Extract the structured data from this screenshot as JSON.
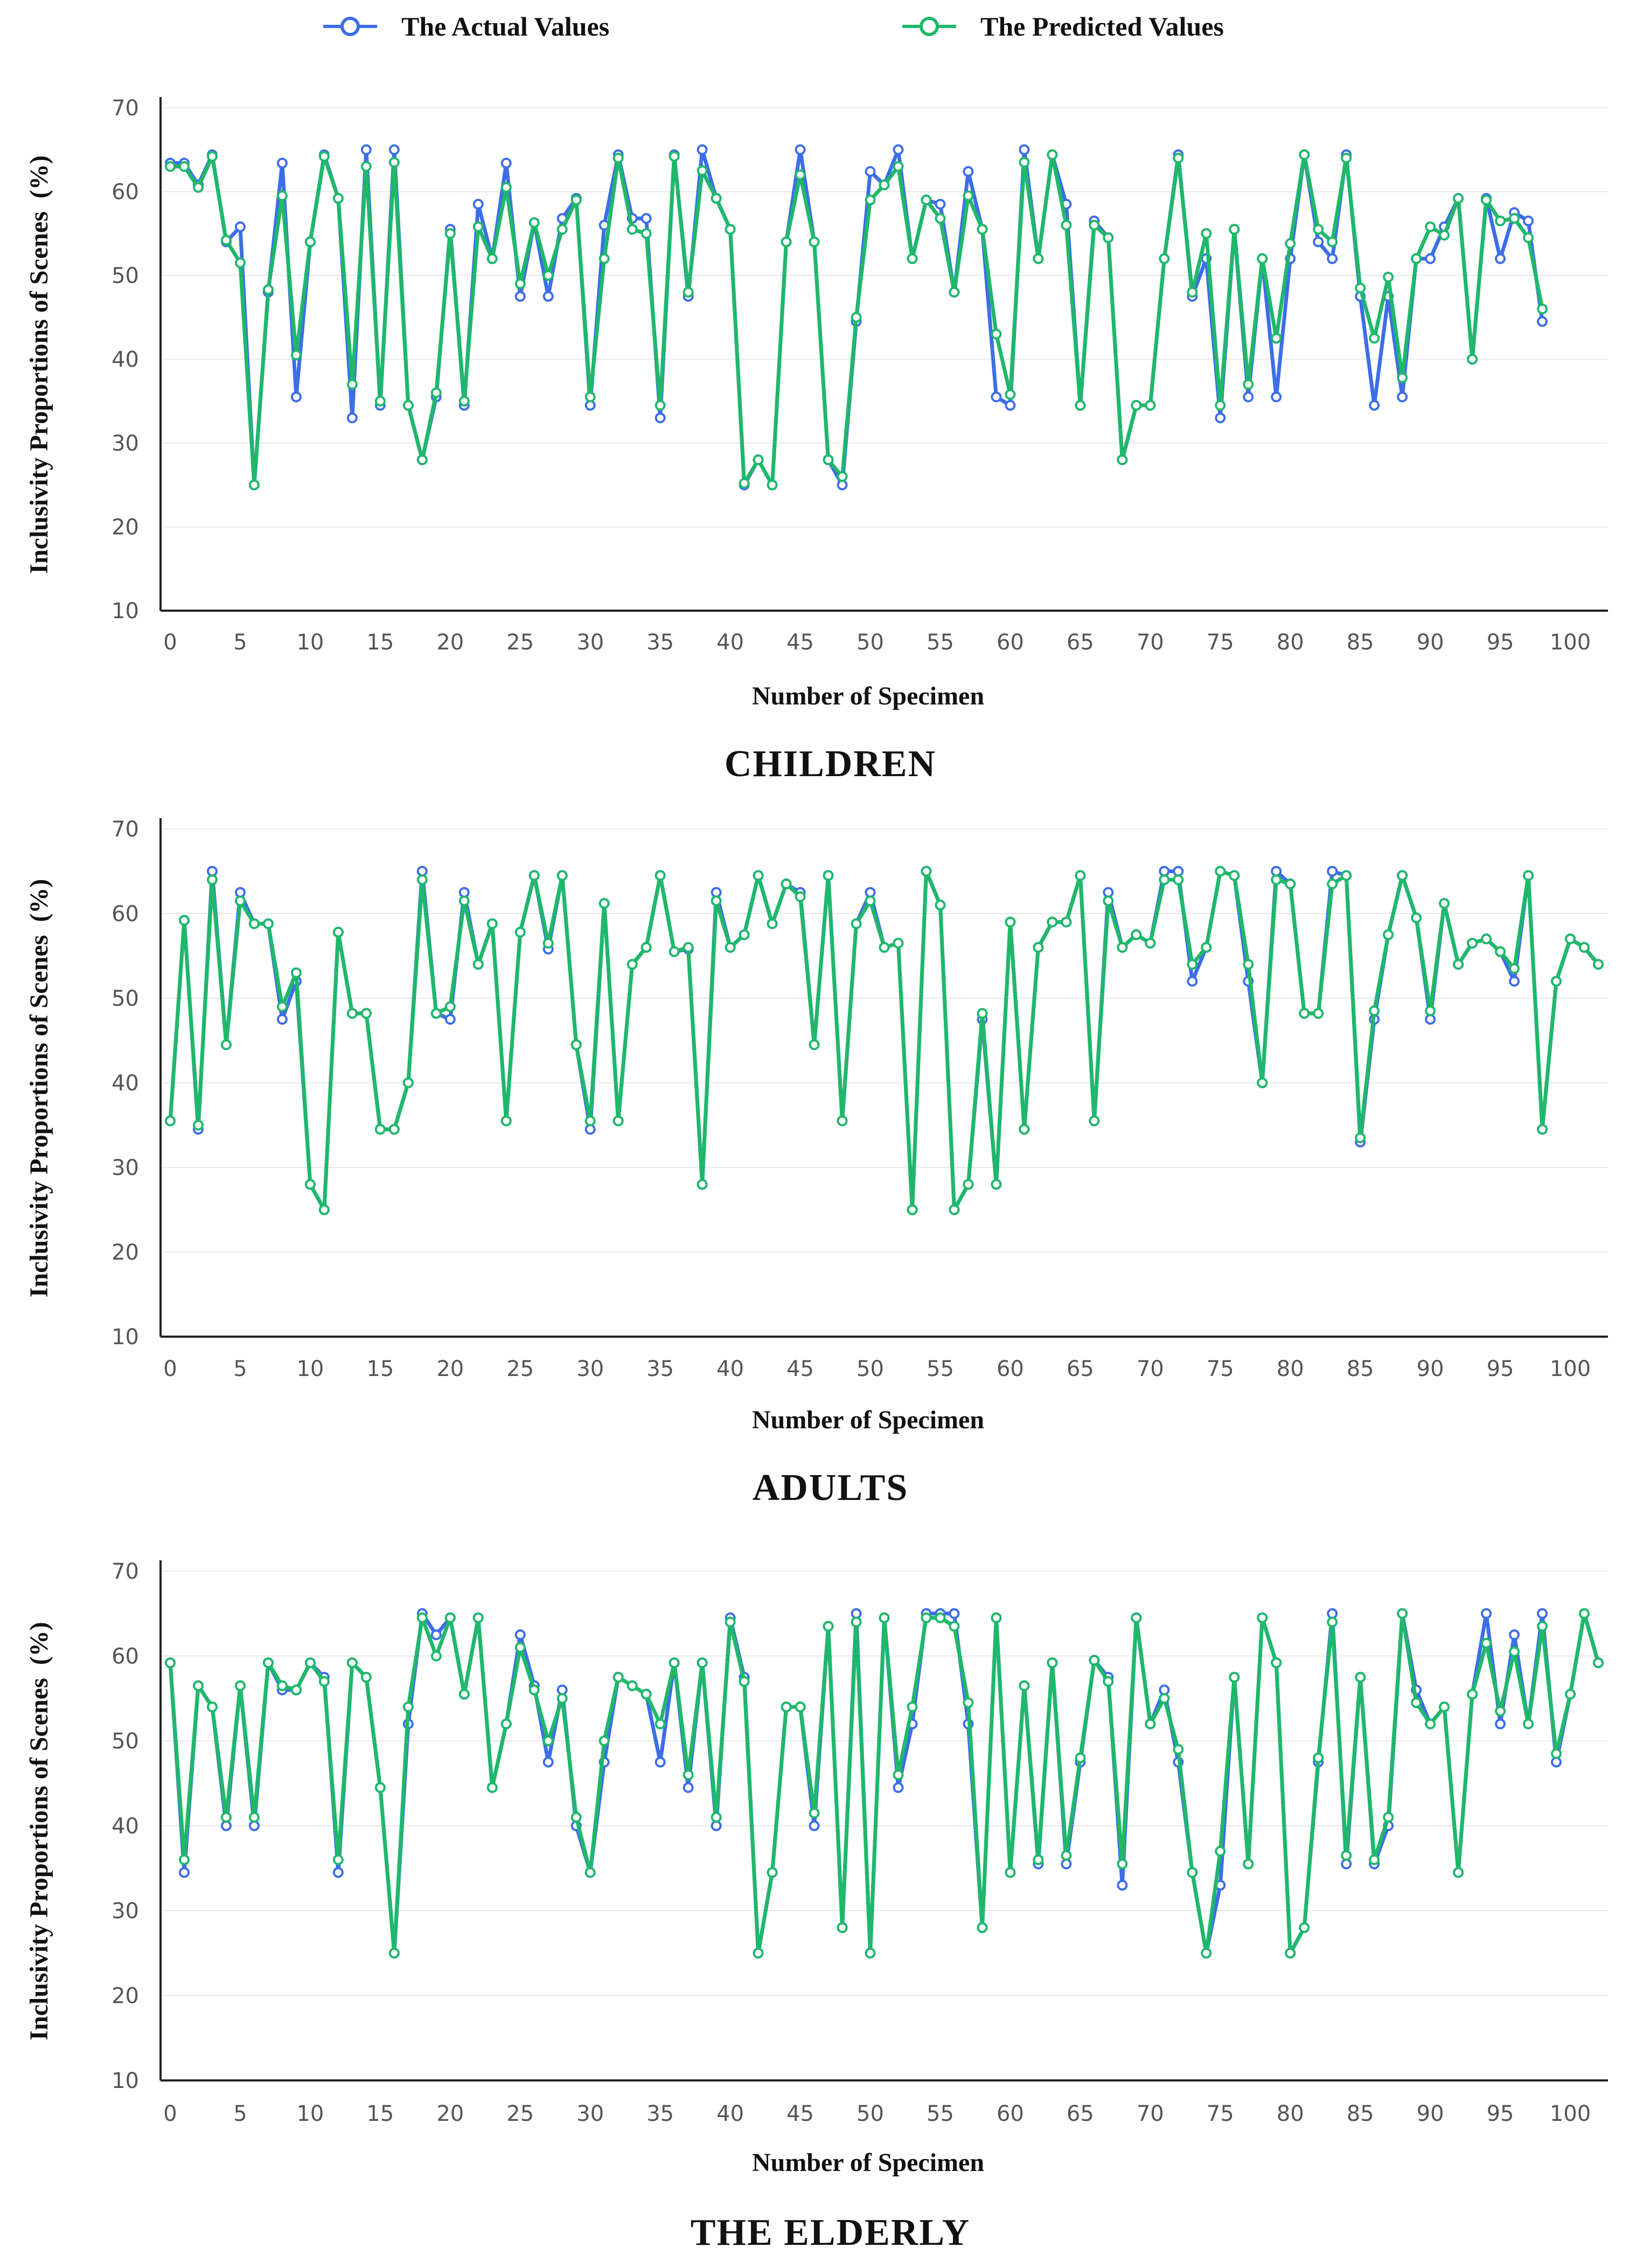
{
  "legend": {
    "actual": {
      "label": "The Actual Values",
      "color": "#3d6ee8"
    },
    "predicted": {
      "label": "The Predicted Values",
      "color": "#1fb86b"
    }
  },
  "chart_data": [
    {
      "type": "line",
      "title": "CHILDREN",
      "xlabel": "Number of Specimen",
      "ylabel": "Inclusivity Proportions of Scenes  (%)",
      "ylim": [
        10,
        70
      ],
      "xlim": [
        0,
        102
      ],
      "yticks": [
        "10",
        "20",
        "30",
        "40",
        "50",
        "60",
        "70"
      ],
      "xticks": [
        "0",
        "5",
        "10",
        "15",
        "20",
        "25",
        "30",
        "35",
        "40",
        "45",
        "50",
        "55",
        "60",
        "65",
        "70",
        "75",
        "80",
        "85",
        "90",
        "95",
        "100"
      ],
      "series": [
        {
          "name": "The Actual Values",
          "values": [
            63.4,
            63.4,
            60.8,
            64.4,
            54.0,
            55.8,
            25.0,
            48.0,
            63.4,
            35.5,
            54.0,
            64.4,
            59.2,
            33.0,
            65.0,
            34.5,
            65.0,
            34.5,
            28.0,
            35.5,
            55.5,
            34.5,
            58.5,
            52.0,
            63.4,
            47.5,
            56.3,
            47.5,
            56.8,
            59.2,
            34.5,
            56.0,
            64.4,
            56.8,
            56.8,
            33.0,
            64.4,
            47.5,
            65.0,
            59.2,
            55.5,
            25.0,
            28.0,
            25.0,
            54.0,
            65.0,
            54.0,
            28.0,
            25.0,
            44.5,
            62.4,
            60.8,
            65.0,
            52.0,
            59.0,
            58.5,
            48.0,
            62.4,
            55.5,
            35.5,
            34.5,
            65.0,
            52.0,
            64.4,
            58.5,
            34.5,
            56.5,
            54.5,
            28.0,
            34.5,
            34.5,
            52.0,
            64.4,
            47.5,
            52.0,
            33.0,
            55.5,
            35.5,
            52.0,
            35.5,
            52.0,
            64.4,
            54.0,
            52.0,
            64.4,
            47.5,
            34.5,
            47.5,
            35.5,
            52.0,
            52.0,
            55.8,
            59.2,
            40.0,
            59.2,
            52.0,
            57.5,
            56.5,
            44.5
          ]
        },
        {
          "name": "The Predicted Values",
          "values": [
            63.0,
            63.0,
            60.5,
            64.2,
            54.2,
            51.5,
            25.0,
            48.3,
            59.5,
            40.5,
            54.0,
            64.2,
            59.2,
            37.0,
            63.0,
            35.0,
            63.5,
            34.5,
            28.0,
            36.0,
            55.0,
            35.0,
            55.8,
            52.0,
            60.5,
            49.0,
            56.3,
            50.0,
            55.5,
            59.0,
            35.5,
            52.0,
            64.0,
            55.5,
            55.0,
            34.5,
            64.2,
            48.0,
            62.5,
            59.2,
            55.5,
            25.2,
            28.0,
            25.0,
            54.0,
            62.0,
            54.0,
            28.0,
            26.0,
            45.0,
            59.0,
            60.8,
            63.0,
            52.0,
            59.0,
            56.8,
            48.0,
            59.5,
            55.5,
            43.0,
            35.8,
            63.5,
            52.0,
            64.4,
            56.0,
            34.5,
            56.0,
            54.5,
            28.0,
            34.5,
            34.5,
            52.0,
            64.0,
            48.0,
            55.0,
            34.5,
            55.5,
            37.0,
            52.0,
            42.5,
            53.8,
            64.4,
            55.5,
            54.0,
            64.0,
            48.5,
            42.5,
            49.8,
            37.8,
            52.0,
            55.8,
            54.8,
            59.2,
            40.0,
            59.0,
            56.5,
            56.8,
            54.5,
            46.0
          ]
        }
      ]
    },
    {
      "type": "line",
      "title": "ADULTS",
      "xlabel": "Number of Specimen",
      "ylabel": "Inclusivity Proportions of Scenes  (%)",
      "ylim": [
        10,
        70
      ],
      "xlim": [
        0,
        102
      ],
      "yticks": [
        "10",
        "20",
        "30",
        "40",
        "50",
        "60",
        "70"
      ],
      "xticks": [
        "0",
        "5",
        "10",
        "15",
        "20",
        "25",
        "30",
        "35",
        "40",
        "45",
        "50",
        "55",
        "60",
        "65",
        "70",
        "75",
        "80",
        "85",
        "90",
        "95",
        "100"
      ],
      "series": [
        {
          "name": "The Actual Values",
          "values": [
            35.5,
            59.2,
            34.5,
            65.0,
            44.5,
            62.5,
            58.8,
            58.8,
            47.5,
            52.0,
            28.0,
            25.0,
            57.8,
            48.2,
            48.2,
            34.5,
            34.5,
            40.0,
            65.0,
            48.2,
            47.5,
            62.5,
            54.0,
            58.8,
            35.5,
            57.8,
            64.5,
            55.8,
            64.5,
            44.5,
            34.5,
            61.2,
            35.5,
            54.0,
            56.0,
            64.5,
            55.5,
            55.8,
            28.0,
            62.5,
            56.0,
            57.5,
            64.5,
            58.8,
            63.5,
            62.5,
            44.5,
            64.5,
            35.5,
            58.8,
            62.5,
            56.0,
            56.5,
            25.0,
            65.0,
            61.0,
            25.0,
            28.0,
            47.5,
            28.0,
            59.0,
            34.5,
            56.0,
            59.0,
            59.0,
            64.5,
            35.5,
            62.5,
            56.0,
            57.5,
            56.5,
            65.0,
            65.0,
            52.0,
            56.0,
            65.0,
            64.5,
            52.0,
            40.0,
            65.0,
            63.5,
            48.2,
            48.2,
            65.0,
            64.5,
            33.0,
            47.5,
            57.5,
            64.5,
            59.5,
            47.5,
            61.2,
            54.0,
            56.5,
            57.0,
            55.5,
            52.0,
            64.5,
            34.5,
            52.0,
            57.0,
            56.0,
            54.0
          ]
        },
        {
          "name": "The Predicted Values",
          "values": [
            35.5,
            59.2,
            35.0,
            64.0,
            44.5,
            61.5,
            58.8,
            58.8,
            49.0,
            53.0,
            28.0,
            25.0,
            57.8,
            48.2,
            48.2,
            34.5,
            34.5,
            40.0,
            64.0,
            48.2,
            49.0,
            61.5,
            54.0,
            58.8,
            35.5,
            57.8,
            64.5,
            56.5,
            64.5,
            44.5,
            35.5,
            61.2,
            35.5,
            54.0,
            56.0,
            64.5,
            55.5,
            56.0,
            28.0,
            61.5,
            56.0,
            57.5,
            64.5,
            58.8,
            63.5,
            62.0,
            44.5,
            64.5,
            35.5,
            58.8,
            61.5,
            56.0,
            56.5,
            25.0,
            65.0,
            61.0,
            25.0,
            28.0,
            48.2,
            28.0,
            59.0,
            34.5,
            56.0,
            59.0,
            59.0,
            64.5,
            35.5,
            61.5,
            56.0,
            57.5,
            56.5,
            64.0,
            64.0,
            54.0,
            56.0,
            65.0,
            64.5,
            54.0,
            40.0,
            64.0,
            63.5,
            48.2,
            48.2,
            63.5,
            64.5,
            33.5,
            48.5,
            57.5,
            64.5,
            59.5,
            48.5,
            61.2,
            54.0,
            56.5,
            57.0,
            55.5,
            53.5,
            64.5,
            34.5,
            52.0,
            57.0,
            56.0,
            54.0
          ]
        }
      ]
    },
    {
      "type": "line",
      "title": "THE ELDERLY",
      "xlabel": "Number of Specimen",
      "ylabel": "Inclusivity Proportions of Scenes  (%)",
      "ylim": [
        10,
        70
      ],
      "xlim": [
        0,
        102
      ],
      "yticks": [
        "10",
        "20",
        "30",
        "40",
        "50",
        "60",
        "70"
      ],
      "xticks": [
        "0",
        "5",
        "10",
        "15",
        "20",
        "25",
        "30",
        "35",
        "40",
        "45",
        "50",
        "55",
        "60",
        "65",
        "70",
        "75",
        "80",
        "85",
        "90",
        "95",
        "100"
      ],
      "series": [
        {
          "name": "The Actual Values",
          "values": [
            59.2,
            34.5,
            56.5,
            54.0,
            40.0,
            56.5,
            40.0,
            59.2,
            56.0,
            56.0,
            59.2,
            57.5,
            34.5,
            59.2,
            57.5,
            44.5,
            25.0,
            52.0,
            65.0,
            62.5,
            64.5,
            55.5,
            64.5,
            44.5,
            52.0,
            62.5,
            56.5,
            47.5,
            56.0,
            40.0,
            34.5,
            47.5,
            57.5,
            56.5,
            55.5,
            47.5,
            59.2,
            44.5,
            59.2,
            40.0,
            64.5,
            57.5,
            25.0,
            34.5,
            54.0,
            54.0,
            40.0,
            63.5,
            28.0,
            65.0,
            25.0,
            64.5,
            44.5,
            52.0,
            65.0,
            65.0,
            65.0,
            52.0,
            28.0,
            64.5,
            34.5,
            56.5,
            35.5,
            59.2,
            35.5,
            47.5,
            59.5,
            57.5,
            33.0,
            64.5,
            52.0,
            56.0,
            47.5,
            34.5,
            25.0,
            33.0,
            57.5,
            35.5,
            64.5,
            59.2,
            25.0,
            28.0,
            47.5,
            65.0,
            35.5,
            57.5,
            35.5,
            40.0,
            65.0,
            56.0,
            52.0,
            54.0,
            34.5,
            55.5,
            65.0,
            52.0,
            62.5,
            52.0,
            65.0,
            47.5,
            55.5,
            65.0,
            59.2
          ]
        },
        {
          "name": "The Predicted Values",
          "values": [
            59.2,
            36.0,
            56.5,
            54.0,
            41.0,
            56.5,
            41.0,
            59.2,
            56.5,
            56.0,
            59.2,
            57.0,
            36.0,
            59.2,
            57.5,
            44.5,
            25.0,
            54.0,
            64.5,
            60.0,
            64.5,
            55.5,
            64.5,
            44.5,
            52.0,
            61.0,
            56.0,
            50.0,
            55.0,
            41.0,
            34.5,
            50.0,
            57.5,
            56.5,
            55.5,
            52.0,
            59.2,
            46.0,
            59.2,
            41.0,
            64.0,
            57.0,
            25.0,
            34.5,
            54.0,
            54.0,
            41.5,
            63.5,
            28.0,
            64.0,
            25.0,
            64.5,
            46.0,
            54.0,
            64.5,
            64.5,
            63.5,
            54.5,
            28.0,
            64.5,
            34.5,
            56.5,
            36.0,
            59.2,
            36.5,
            48.0,
            59.5,
            57.0,
            35.5,
            64.5,
            52.0,
            55.0,
            49.0,
            34.5,
            25.0,
            37.0,
            57.5,
            35.5,
            64.5,
            59.2,
            25.0,
            28.0,
            48.0,
            64.0,
            36.5,
            57.5,
            36.0,
            41.0,
            65.0,
            54.5,
            52.0,
            54.0,
            34.5,
            55.5,
            61.5,
            53.5,
            60.5,
            52.0,
            63.5,
            48.5,
            55.5,
            65.0,
            59.2
          ]
        }
      ]
    }
  ]
}
